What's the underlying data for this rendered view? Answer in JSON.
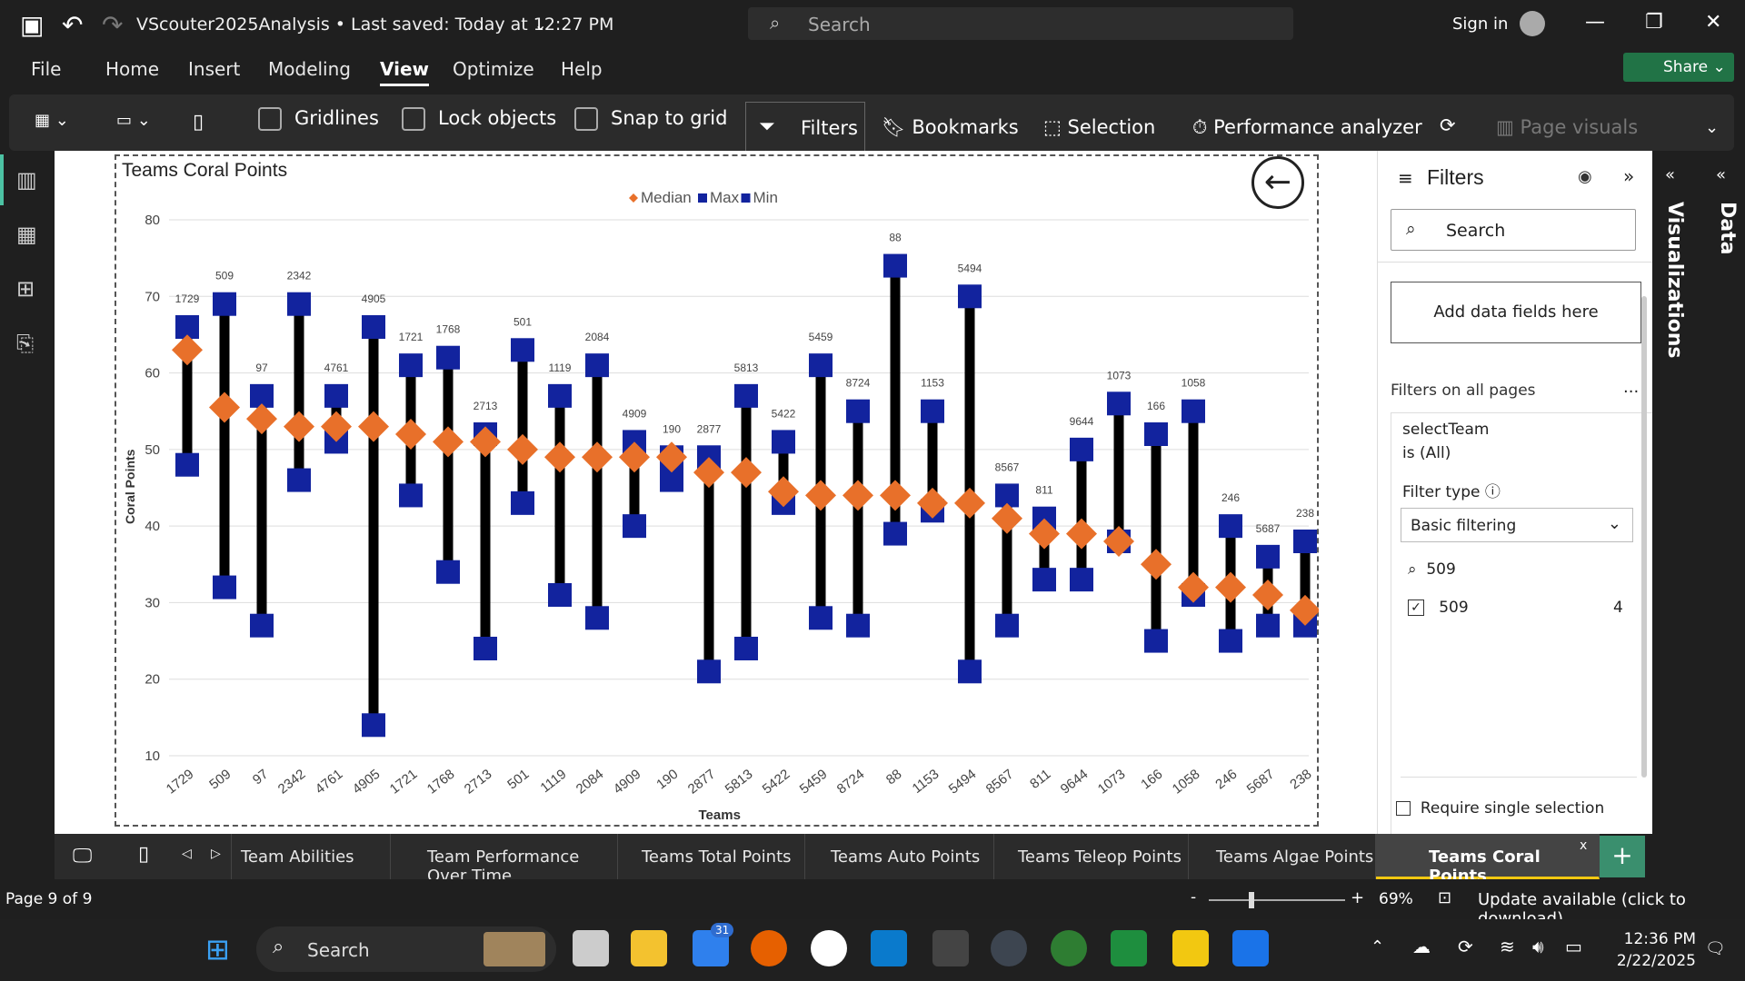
{
  "titlebar": {
    "title": "VScouter2025Analysis • Last saved: Today at 12:27 PM",
    "search_placeholder": "Search",
    "sign_in": "Sign in"
  },
  "menu": [
    "File",
    "Home",
    "Insert",
    "Modeling",
    "View",
    "Optimize",
    "Help"
  ],
  "menu_active": "View",
  "share_label": "Share",
  "ribbon": {
    "gridlines": "Gridlines",
    "lock_objects": "Lock objects",
    "snap_to_grid": "Snap to grid",
    "filters": "Filters",
    "bookmarks": "Bookmarks",
    "selection": "Selection",
    "performance": "Performance analyzer",
    "page_visuals": "Page visuals"
  },
  "filters_pane": {
    "title": "Filters",
    "search_placeholder": "Search",
    "add_fields": "Add data fields here",
    "filters_all_pages": "Filters on all pages",
    "more": "...",
    "field": "selectTeam",
    "condition": "is (All)",
    "filter_type_label": "Filter type",
    "filter_type_value": "Basic filtering",
    "search_value": "509",
    "item_label": "509",
    "item_count": "4",
    "require_single": "Require single selection"
  },
  "right_rail": {
    "visualizations": "Visualizations",
    "data": "Data"
  },
  "page_tabs": [
    "Team Abilities",
    "Team Performance Over Time",
    "Teams Total Points",
    "Teams Auto Points",
    "Teams Teleop Points",
    "Teams Algae Points",
    "Teams Coral Points"
  ],
  "active_tab": "Teams Coral Points",
  "status": {
    "page": "Page 9 of 9",
    "zoom": "69%",
    "update": "Update available (click to download)"
  },
  "taskbar": {
    "search": "Search",
    "badge": "31",
    "time": "12:36 PM",
    "date": "2/22/2025"
  },
  "colors": {
    "median": "#e8702a",
    "max": "#12239e",
    "min": "#12239e",
    "accent": "#f2c811",
    "share": "#217346"
  },
  "chart_data": {
    "type": "scatter",
    "title": "Teams Coral Points",
    "xlabel": "Teams",
    "ylabel": "Coral Points",
    "ylim": [
      10,
      80
    ],
    "yticks": [
      10,
      20,
      30,
      40,
      50,
      60,
      70,
      80
    ],
    "legend": [
      "Median",
      "Max",
      "Min"
    ],
    "legend_position": "top-center",
    "categories": [
      "1729",
      "509",
      "97",
      "2342",
      "4761",
      "4905",
      "1721",
      "1768",
      "2713",
      "501",
      "1119",
      "2084",
      "4909",
      "190",
      "2877",
      "5813",
      "5422",
      "5459",
      "8724",
      "88",
      "1153",
      "5494",
      "8567",
      "811",
      "9644",
      "1073",
      "166",
      "1058",
      "246",
      "5687",
      "238"
    ],
    "series": [
      {
        "name": "Max",
        "values": [
          66,
          69,
          57,
          69,
          57,
          66,
          61,
          62,
          52,
          63,
          57,
          61,
          51,
          49,
          49,
          57,
          51,
          61,
          55,
          74,
          55,
          70,
          44,
          41,
          50,
          56,
          52,
          55,
          40,
          36,
          38
        ]
      },
      {
        "name": "Min",
        "values": [
          48,
          32,
          27,
          46,
          51,
          14,
          44,
          34,
          24,
          43,
          31,
          28,
          40,
          46,
          21,
          24,
          43,
          28,
          27,
          39,
          42,
          21,
          27,
          33,
          33,
          38,
          25,
          31,
          25,
          27,
          27
        ]
      },
      {
        "name": "Median",
        "values": [
          63,
          55.5,
          54,
          53,
          53,
          53,
          52,
          51,
          51,
          50,
          49,
          49,
          49,
          49,
          47,
          47,
          44.5,
          44,
          44,
          44,
          43,
          43,
          41,
          39,
          39,
          38,
          35,
          32,
          32,
          31,
          29
        ]
      }
    ]
  }
}
